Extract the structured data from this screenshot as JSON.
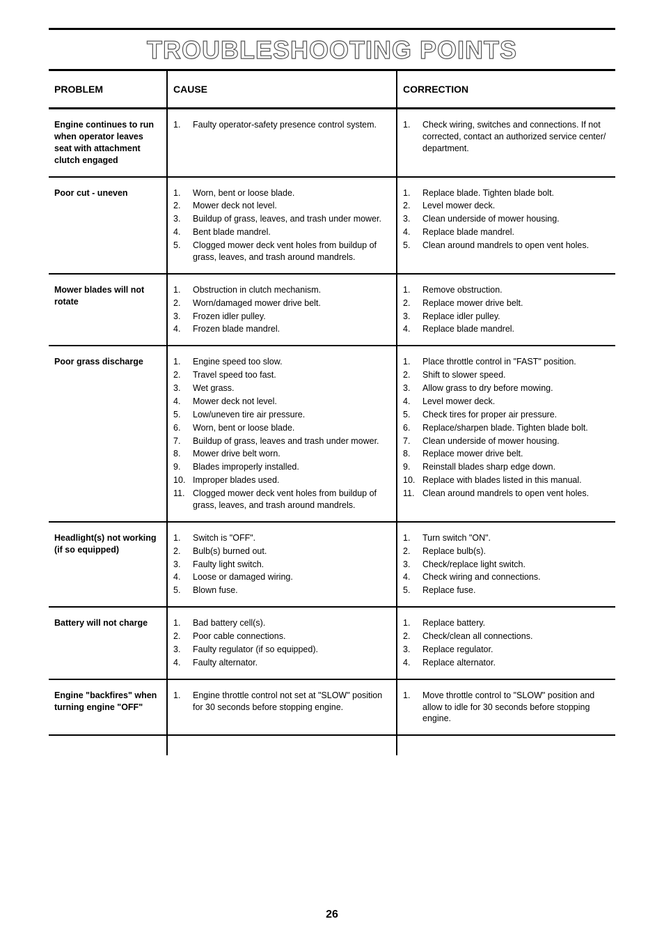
{
  "title": "TROUBLESHOOTING POINTS",
  "page_number": "26",
  "headers": {
    "problem": "PROBLEM",
    "cause": "CAUSE",
    "correction": "CORRECTION"
  },
  "rows": [
    {
      "problem": "Engine continues to run when operator leaves seat with attachment clutch engaged",
      "causes": [
        "Faulty operator-safety presence control system."
      ],
      "corrections": [
        "Check wiring, switches and connections. If not corrected, contact an authorized service center/ department."
      ]
    },
    {
      "problem": "Poor cut - uneven",
      "causes": [
        "Worn, bent or loose blade.",
        "Mower deck not level.",
        "Buildup of grass, leaves, and trash under mower.",
        "Bent blade mandrel.",
        "Clogged mower deck vent holes from buildup of grass, leaves, and trash around mandrels."
      ],
      "corrections": [
        "Replace blade. Tighten blade bolt.",
        "Level mower deck.",
        "Clean underside of mower housing.",
        "Replace blade mandrel.",
        "Clean around mandrels to open vent holes."
      ]
    },
    {
      "problem": "Mower blades will not rotate",
      "causes": [
        "Obstruction in clutch mechanism.",
        "Worn/damaged mower drive belt.",
        "Frozen idler pulley.",
        "Frozen blade mandrel."
      ],
      "corrections": [
        "Remove obstruction.",
        "Replace mower drive belt.",
        "Replace idler pulley.",
        "Replace blade mandrel."
      ]
    },
    {
      "problem": "Poor grass discharge",
      "causes": [
        "Engine speed too slow.",
        "Travel speed too fast.",
        "Wet grass.",
        "Mower deck not level.",
        "Low/uneven tire air pressure.",
        "Worn, bent or loose blade.",
        "Buildup of grass, leaves and trash under mower.",
        "Mower drive belt worn.",
        "Blades improperly installed.",
        "Improper blades used.",
        "Clogged mower deck vent holes from buildup of grass, leaves, and trash around mandrels."
      ],
      "corrections": [
        "Place throttle control in \"FAST\" position.",
        "Shift to slower speed.",
        "Allow grass to dry before mowing.",
        "Level mower deck.",
        "Check tires for proper air pressure.",
        "Replace/sharpen blade. Tighten blade bolt.",
        "Clean underside of mower housing.",
        "Replace mower drive belt.",
        "Reinstall blades sharp edge down.",
        "Replace with blades listed in this manual.",
        "Clean around mandrels to open vent holes."
      ]
    },
    {
      "problem": "Headlight(s) not working (if so equipped)",
      "causes": [
        "Switch is \"OFF\".",
        "Bulb(s) burned out.",
        "Faulty light switch.",
        "Loose or damaged wiring.",
        "Blown fuse."
      ],
      "corrections": [
        "Turn switch \"ON\".",
        "Replace bulb(s).",
        "Check/replace light switch.",
        "Check wiring and connections.",
        "Replace fuse."
      ]
    },
    {
      "problem": "Battery will not charge",
      "causes": [
        "Bad battery cell(s).",
        "Poor cable connections.",
        "Faulty regulator (if so equipped).",
        "Faulty alternator."
      ],
      "corrections": [
        "Replace battery.",
        "Check/clean all connections.",
        "Replace regulator.",
        "Replace alternator."
      ]
    },
    {
      "problem": "Engine \"backfires\" when turning engine \"OFF\"",
      "causes": [
        "Engine throttle control not set at \"SLOW\" position for 30 seconds before stopping engine."
      ],
      "corrections": [
        "Move throttle control to \"SLOW\" position and allow to idle for 30 seconds before stopping engine."
      ]
    }
  ]
}
